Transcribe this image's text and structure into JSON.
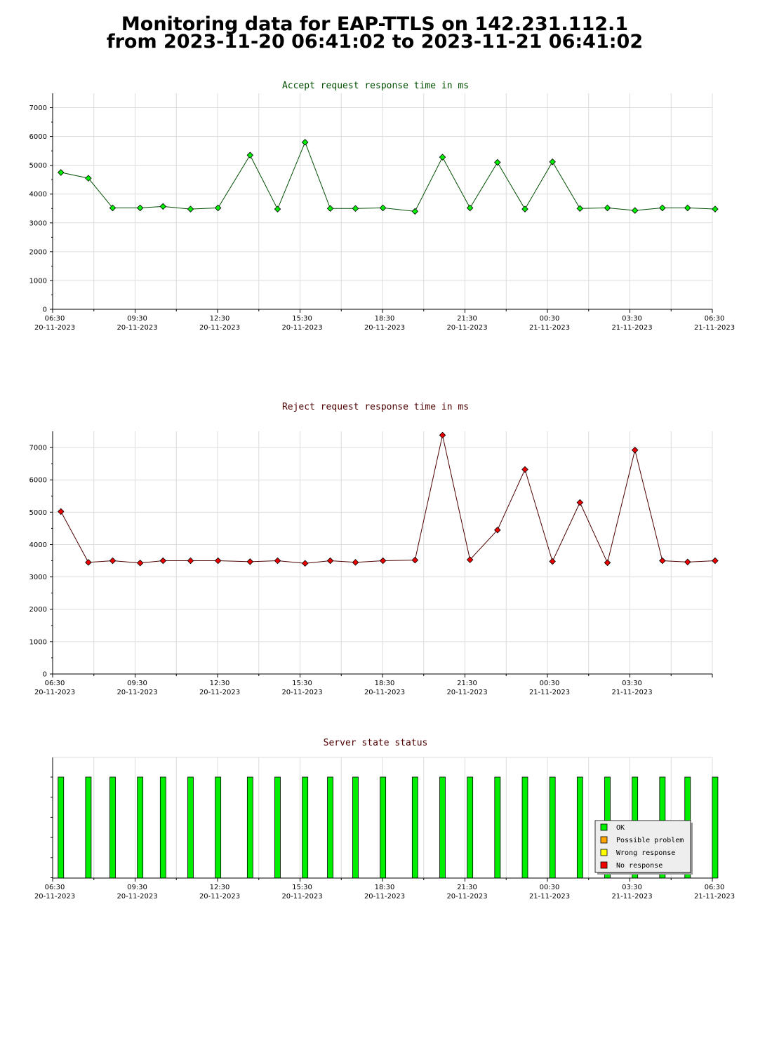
{
  "page": {
    "title_line1": "Monitoring data for EAP-TTLS on 142.231.112.1",
    "title_line2": "from 2023-11-20 06:41:02 to 2023-11-21 06:41:02"
  },
  "chart_data": [
    {
      "type": "line",
      "title": "Accept request response time in ms",
      "title_color": "#004d00",
      "series": [
        {
          "color": "#00ee00",
          "x": [
            "2023-11-20 06:48",
            "2023-11-20 07:48",
            "2023-11-20 08:41",
            "2023-11-20 09:41",
            "2023-11-20 10:31",
            "2023-11-20 11:31",
            "2023-11-20 12:31",
            "2023-11-20 13:41",
            "2023-11-20 14:41",
            "2023-11-20 15:41",
            "2023-11-20 16:36",
            "2023-11-20 17:31",
            "2023-11-20 18:31",
            "2023-11-20 19:41",
            "2023-11-20 20:41",
            "2023-11-20 21:41",
            "2023-11-20 22:41",
            "2023-11-20 23:41",
            "2023-11-21 00:41",
            "2023-11-21 01:41",
            "2023-11-21 02:41",
            "2023-11-21 03:41",
            "2023-11-21 04:41",
            "2023-11-21 05:36",
            "2023-11-21 06:36"
          ],
          "y": [
            4750,
            4550,
            3520,
            3520,
            3570,
            3480,
            3520,
            5350,
            3480,
            5800,
            3500,
            3500,
            3520,
            3400,
            5280,
            3520,
            5100,
            3480,
            5120,
            3500,
            3520,
            3430,
            3520,
            3520,
            3480
          ]
        }
      ],
      "xlim": [
        "2023-11-20 06:30",
        "2023-11-21 06:30"
      ],
      "ylim": [
        0,
        7500
      ],
      "yticks": [
        0,
        1000,
        2000,
        3000,
        4000,
        5000,
        6000,
        7000
      ],
      "xtick_labels": [
        {
          "time": "06:30",
          "date": "20-11-2023"
        },
        {
          "time": "09:30",
          "date": "20-11-2023"
        },
        {
          "time": "12:30",
          "date": "20-11-2023"
        },
        {
          "time": "15:30",
          "date": "20-11-2023"
        },
        {
          "time": "18:30",
          "date": "20-11-2023"
        },
        {
          "time": "21:30",
          "date": "20-11-2023"
        },
        {
          "time": "00:30",
          "date": "21-11-2023"
        },
        {
          "time": "03:30",
          "date": "21-11-2023"
        },
        {
          "time": "06:30",
          "date": "21-11-2023"
        }
      ],
      "grid": true
    },
    {
      "type": "line",
      "title": "Reject request response time in ms",
      "title_color": "#4d0000",
      "series": [
        {
          "color": "#ee0000",
          "x": [
            "2023-11-20 06:48",
            "2023-11-20 07:48",
            "2023-11-20 08:41",
            "2023-11-20 09:41",
            "2023-11-20 10:31",
            "2023-11-20 11:31",
            "2023-11-20 12:31",
            "2023-11-20 13:41",
            "2023-11-20 14:41",
            "2023-11-20 15:41",
            "2023-11-20 16:36",
            "2023-11-20 17:31",
            "2023-11-20 18:31",
            "2023-11-20 19:41",
            "2023-11-20 20:41",
            "2023-11-20 21:41",
            "2023-11-20 22:41",
            "2023-11-20 23:41",
            "2023-11-21 00:41",
            "2023-11-21 01:41",
            "2023-11-21 02:41",
            "2023-11-21 03:41",
            "2023-11-21 04:41",
            "2023-11-21 05:36",
            "2023-11-21 06:36"
          ],
          "y": [
            5020,
            3450,
            3500,
            3430,
            3500,
            3500,
            3500,
            3470,
            3500,
            3420,
            3500,
            3450,
            3500,
            3520,
            7380,
            3530,
            4450,
            6320,
            3480,
            5300,
            3440,
            6920,
            3500,
            3460,
            3500
          ]
        }
      ],
      "xlim": [
        "2023-11-20 06:30",
        "2023-11-21 06:30"
      ],
      "ylim": [
        0,
        7500
      ],
      "yticks": [
        0,
        1000,
        2000,
        3000,
        4000,
        5000,
        6000,
        7000
      ],
      "xtick_labels": [
        {
          "time": "06:30",
          "date": "20-11-2023"
        },
        {
          "time": "09:30",
          "date": "20-11-2023"
        },
        {
          "time": "12:30",
          "date": "20-11-2023"
        },
        {
          "time": "15:30",
          "date": "20-11-2023"
        },
        {
          "time": "18:30",
          "date": "20-11-2023"
        },
        {
          "time": "21:30",
          "date": "20-11-2023"
        },
        {
          "time": "00:30",
          "date": "21-11-2023"
        },
        {
          "time": "03:30",
          "date": "21-11-2023"
        }
      ],
      "grid": true
    },
    {
      "type": "bar",
      "title": "Server state status",
      "title_color": "#4d0000",
      "series": [
        {
          "name": "OK",
          "color": "#00ee00",
          "x": [
            "2023-11-20 06:48",
            "2023-11-20 07:48",
            "2023-11-20 08:41",
            "2023-11-20 09:41",
            "2023-11-20 10:31",
            "2023-11-20 11:31",
            "2023-11-20 12:31",
            "2023-11-20 13:41",
            "2023-11-20 14:41",
            "2023-11-20 15:41",
            "2023-11-20 16:36",
            "2023-11-20 17:31",
            "2023-11-20 18:31",
            "2023-11-20 19:41",
            "2023-11-20 20:41",
            "2023-11-20 21:41",
            "2023-11-20 22:41",
            "2023-11-20 23:41",
            "2023-11-21 00:41",
            "2023-11-21 01:41",
            "2023-11-21 02:41",
            "2023-11-21 03:41",
            "2023-11-21 04:41",
            "2023-11-21 05:36",
            "2023-11-21 06:36"
          ],
          "values": [
            1,
            1,
            1,
            1,
            1,
            1,
            1,
            1,
            1,
            1,
            1,
            1,
            1,
            1,
            1,
            1,
            1,
            1,
            1,
            1,
            1,
            1,
            1,
            1,
            1
          ]
        }
      ],
      "legend": {
        "placement": "bottom-right",
        "items": [
          {
            "label": "OK",
            "color": "#00ee00"
          },
          {
            "label": "Possible problem",
            "color": "#ffa500"
          },
          {
            "label": "Wrong response",
            "color": "#ffff00"
          },
          {
            "label": "No response",
            "color": "#ee0000"
          }
        ]
      },
      "xlim": [
        "2023-11-20 06:30",
        "2023-11-21 06:30"
      ],
      "xtick_labels": [
        {
          "time": "06:30",
          "date": "20-11-2023"
        },
        {
          "time": "09:30",
          "date": "20-11-2023"
        },
        {
          "time": "12:30",
          "date": "20-11-2023"
        },
        {
          "time": "15:30",
          "date": "20-11-2023"
        },
        {
          "time": "18:30",
          "date": "20-11-2023"
        },
        {
          "time": "21:30",
          "date": "20-11-2023"
        },
        {
          "time": "00:30",
          "date": "21-11-2023"
        },
        {
          "time": "03:30",
          "date": "21-11-2023"
        },
        {
          "time": "06:30",
          "date": "21-11-2023"
        }
      ],
      "grid": true
    }
  ]
}
